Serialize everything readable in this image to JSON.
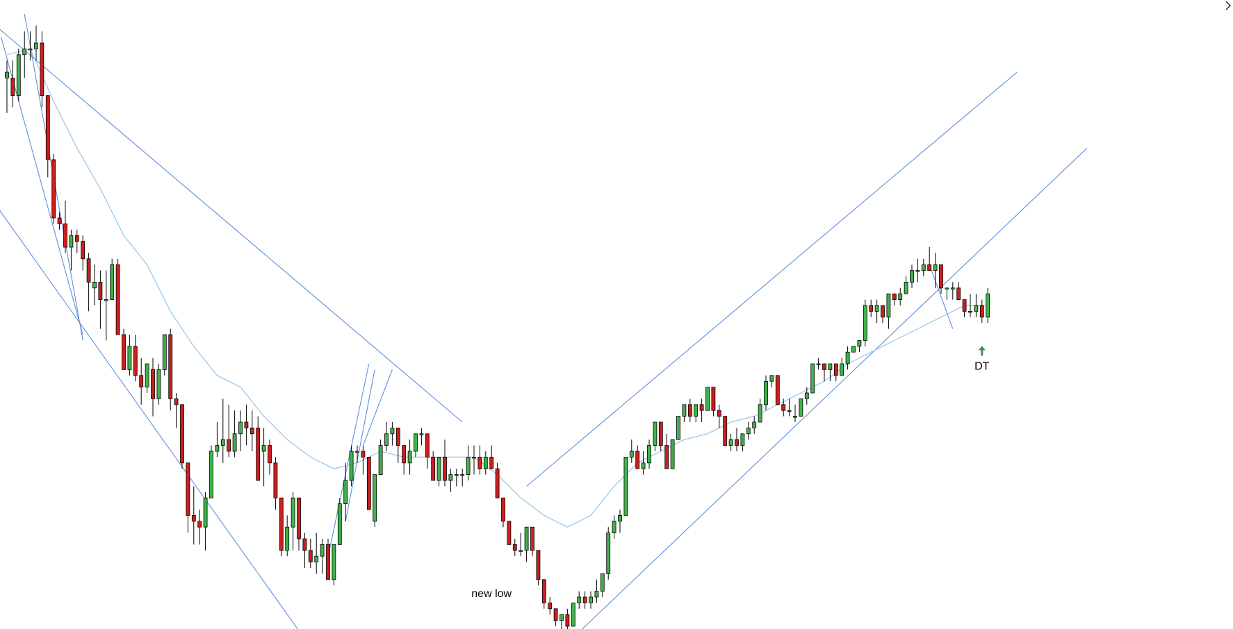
{
  "chart_data": {
    "type": "candlestick",
    "title": "",
    "xlabel": "",
    "ylabel": "",
    "ylim": [
      0,
      100
    ],
    "grid": false,
    "legend": "none",
    "colors": {
      "bull": "#3fb24a",
      "bear": "#cc1f1f",
      "trendline": "#5b8fdc",
      "ema": "#8fc6ee",
      "arrow": "#3e8e4e"
    },
    "bars": [
      {
        "o": 89,
        "h": 92,
        "l": 83,
        "c": 90
      },
      {
        "o": 89,
        "h": 92,
        "l": 84,
        "c": 86
      },
      {
        "o": 86,
        "h": 94,
        "l": 85,
        "c": 93
      },
      {
        "o": 93,
        "h": 97,
        "l": 89,
        "c": 94
      },
      {
        "o": 94,
        "h": 97,
        "l": 92,
        "c": 94
      },
      {
        "o": 94,
        "h": 98,
        "l": 92,
        "c": 95
      },
      {
        "o": 95,
        "h": 97,
        "l": 84,
        "c": 86
      },
      {
        "o": 86,
        "h": 86,
        "l": 72,
        "c": 75
      },
      {
        "o": 75,
        "h": 76,
        "l": 64,
        "c": 65
      },
      {
        "o": 65,
        "h": 66,
        "l": 63,
        "c": 64
      },
      {
        "o": 64,
        "h": 68,
        "l": 59,
        "c": 60
      },
      {
        "o": 60,
        "h": 63,
        "l": 56,
        "c": 62
      },
      {
        "o": 62,
        "h": 63,
        "l": 59,
        "c": 61
      },
      {
        "o": 61,
        "h": 62,
        "l": 56,
        "c": 58
      },
      {
        "o": 58,
        "h": 59,
        "l": 49,
        "c": 54
      },
      {
        "o": 53,
        "h": 57,
        "l": 50,
        "c": 54
      },
      {
        "o": 54,
        "h": 56,
        "l": 46,
        "c": 51
      },
      {
        "o": 51,
        "h": 56,
        "l": 44,
        "c": 51
      },
      {
        "o": 51,
        "h": 58,
        "l": 51,
        "c": 57
      },
      {
        "o": 57,
        "h": 58,
        "l": 45,
        "c": 45
      },
      {
        "o": 45,
        "h": 46,
        "l": 39,
        "c": 39
      },
      {
        "o": 39,
        "h": 45,
        "l": 38,
        "c": 43
      },
      {
        "o": 43,
        "h": 45,
        "l": 37,
        "c": 38
      },
      {
        "o": 38,
        "h": 41,
        "l": 33,
        "c": 36
      },
      {
        "o": 36,
        "h": 40,
        "l": 35,
        "c": 40
      },
      {
        "o": 39,
        "h": 41,
        "l": 31,
        "c": 34
      },
      {
        "o": 34,
        "h": 40,
        "l": 33,
        "c": 39
      },
      {
        "o": 39,
        "h": 45,
        "l": 38,
        "c": 45
      },
      {
        "o": 45,
        "h": 46,
        "l": 32,
        "c": 34
      },
      {
        "o": 34,
        "h": 35,
        "l": 29,
        "c": 33
      },
      {
        "o": 33,
        "h": 33,
        "l": 22,
        "c": 23
      },
      {
        "o": 23,
        "h": 23,
        "l": 11,
        "c": 14
      },
      {
        "o": 14,
        "h": 19,
        "l": 9,
        "c": 13
      },
      {
        "o": 13,
        "h": 15,
        "l": 9,
        "c": 12
      },
      {
        "o": 12,
        "h": 18,
        "l": 8,
        "c": 17
      },
      {
        "o": 17,
        "h": 26,
        "l": 17,
        "c": 25
      },
      {
        "o": 25,
        "h": 30,
        "l": 24,
        "c": 26
      },
      {
        "o": 26,
        "h": 34,
        "l": 23,
        "c": 27
      },
      {
        "o": 27,
        "h": 33,
        "l": 24,
        "c": 25
      },
      {
        "o": 25,
        "h": 32,
        "l": 24,
        "c": 28
      },
      {
        "o": 28,
        "h": 32,
        "l": 25,
        "c": 30
      },
      {
        "o": 30,
        "h": 33,
        "l": 26,
        "c": 29
      },
      {
        "o": 29,
        "h": 32,
        "l": 25,
        "c": 28
      },
      {
        "o": 29,
        "h": 31,
        "l": 20,
        "c": 20
      },
      {
        "o": 25,
        "h": 29,
        "l": 19,
        "c": 26
      },
      {
        "o": 26,
        "h": 27,
        "l": 21,
        "c": 23
      },
      {
        "o": 23,
        "h": 24,
        "l": 15,
        "c": 17
      },
      {
        "o": 17,
        "h": 17,
        "l": 7,
        "c": 8
      },
      {
        "o": 8,
        "h": 14,
        "l": 7,
        "c": 12
      },
      {
        "o": 12,
        "h": 18,
        "l": 8,
        "c": 17
      },
      {
        "o": 17,
        "h": 17,
        "l": 8,
        "c": 10
      },
      {
        "o": 10,
        "h": 11,
        "l": 5,
        "c": 8
      },
      {
        "o": 8,
        "h": 10,
        "l": 5,
        "c": 6
      },
      {
        "o": 6,
        "h": 11,
        "l": 4,
        "c": 7
      },
      {
        "o": 7,
        "h": 10,
        "l": 4,
        "c": 9
      },
      {
        "o": 9,
        "h": 10,
        "l": 3,
        "c": 3
      },
      {
        "o": 3,
        "h": 9,
        "l": 2,
        "c": 9
      },
      {
        "o": 9,
        "h": 17,
        "l": 9,
        "c": 16
      },
      {
        "o": 16,
        "h": 23,
        "l": 13,
        "c": 20
      },
      {
        "o": 20,
        "h": 26,
        "l": 19,
        "c": 25
      },
      {
        "o": 25,
        "h": 26,
        "l": 23,
        "c": 25
      },
      {
        "o": 25,
        "h": 26,
        "l": 21,
        "c": 24
      },
      {
        "o": 24,
        "h": 24,
        "l": 15,
        "c": 15
      },
      {
        "o": 13,
        "h": 21,
        "l": 12,
        "c": 21
      },
      {
        "o": 21,
        "h": 27,
        "l": 21,
        "c": 26
      },
      {
        "o": 26,
        "h": 30,
        "l": 25,
        "c": 28
      },
      {
        "o": 28,
        "h": 30,
        "l": 26,
        "c": 29
      },
      {
        "o": 29,
        "h": 29,
        "l": 23,
        "c": 26
      },
      {
        "o": 26,
        "h": 26,
        "l": 21,
        "c": 23
      },
      {
        "o": 23,
        "h": 27,
        "l": 21,
        "c": 25
      },
      {
        "o": 25,
        "h": 28,
        "l": 24,
        "c": 28
      },
      {
        "o": 28,
        "h": 29,
        "l": 26,
        "c": 28
      },
      {
        "o": 28,
        "h": 28,
        "l": 22,
        "c": 24
      },
      {
        "o": 24,
        "h": 25,
        "l": 20,
        "c": 20
      },
      {
        "o": 20,
        "h": 24,
        "l": 19,
        "c": 24
      },
      {
        "o": 24,
        "h": 27,
        "l": 19,
        "c": 20
      },
      {
        "o": 20,
        "h": 22,
        "l": 18,
        "c": 21
      },
      {
        "o": 21,
        "h": 22,
        "l": 19,
        "c": 21
      },
      {
        "o": 21,
        "h": 22,
        "l": 19,
        "c": 21
      },
      {
        "o": 21,
        "h": 26,
        "l": 20,
        "c": 24
      },
      {
        "o": 24,
        "h": 26,
        "l": 21,
        "c": 24
      },
      {
        "o": 24,
        "h": 26,
        "l": 21,
        "c": 22
      },
      {
        "o": 22,
        "h": 25,
        "l": 21,
        "c": 24
      },
      {
        "o": 24,
        "h": 26,
        "l": 22,
        "c": 22
      },
      {
        "o": 22,
        "h": 23,
        "l": 17,
        "c": 17
      },
      {
        "o": 17,
        "h": 17,
        "l": 12,
        "c": 13
      },
      {
        "o": 13,
        "h": 13,
        "l": 9,
        "c": 9
      },
      {
        "o": 9,
        "h": 10,
        "l": 7,
        "c": 8
      },
      {
        "o": 8,
        "h": 11,
        "l": 7,
        "c": 8
      },
      {
        "o": 8,
        "h": 12,
        "l": 6,
        "c": 12
      },
      {
        "o": 12,
        "h": 12,
        "l": 7,
        "c": 8
      },
      {
        "o": 8,
        "h": 8,
        "l": 2,
        "c": 3
      },
      {
        "o": 3,
        "h": 3,
        "l": -2,
        "c": -1
      },
      {
        "o": -1,
        "h": 0,
        "l": -3,
        "c": -2
      },
      {
        "o": -2,
        "h": -2,
        "l": -5,
        "c": -4
      },
      {
        "o": -4,
        "h": -3,
        "l": -6,
        "c": -3
      },
      {
        "o": -3,
        "h": -2,
        "l": -6,
        "c": -5
      },
      {
        "o": -5,
        "h": -1,
        "l": -5,
        "c": -1
      },
      {
        "o": -1,
        "h": 1,
        "l": -2,
        "c": 0
      },
      {
        "o": 0,
        "h": 1,
        "l": -2,
        "c": -1
      },
      {
        "o": -1,
        "h": 1,
        "l": -2,
        "c": 0
      },
      {
        "o": 0,
        "h": 3,
        "l": -1,
        "c": 1
      },
      {
        "o": 1,
        "h": 4,
        "l": 0,
        "c": 4
      },
      {
        "o": 4,
        "h": 12,
        "l": 3,
        "c": 11
      },
      {
        "o": 11,
        "h": 14,
        "l": 10,
        "c": 13
      },
      {
        "o": 13,
        "h": 15,
        "l": 11,
        "c": 14
      },
      {
        "o": 14,
        "h": 24,
        "l": 14,
        "c": 24
      },
      {
        "o": 24,
        "h": 27,
        "l": 23,
        "c": 25
      },
      {
        "o": 25,
        "h": 26,
        "l": 22,
        "c": 22
      },
      {
        "o": 22,
        "h": 25,
        "l": 21,
        "c": 23
      },
      {
        "o": 23,
        "h": 27,
        "l": 22,
        "c": 26
      },
      {
        "o": 26,
        "h": 30,
        "l": 25,
        "c": 30
      },
      {
        "o": 30,
        "h": 30,
        "l": 25,
        "c": 26
      },
      {
        "o": 26,
        "h": 28,
        "l": 22,
        "c": 22
      },
      {
        "o": 22,
        "h": 27,
        "l": 22,
        "c": 27
      },
      {
        "o": 27,
        "h": 31,
        "l": 27,
        "c": 31
      },
      {
        "o": 31,
        "h": 33,
        "l": 30,
        "c": 33
      },
      {
        "o": 33,
        "h": 34,
        "l": 30,
        "c": 31
      },
      {
        "o": 31,
        "h": 33,
        "l": 30,
        "c": 33
      },
      {
        "o": 33,
        "h": 34,
        "l": 30,
        "c": 32
      },
      {
        "o": 32,
        "h": 36,
        "l": 32,
        "c": 36
      },
      {
        "o": 36,
        "h": 36,
        "l": 31,
        "c": 32
      },
      {
        "o": 32,
        "h": 33,
        "l": 29,
        "c": 31
      },
      {
        "o": 31,
        "h": 31,
        "l": 26,
        "c": 26
      },
      {
        "o": 26,
        "h": 28,
        "l": 25,
        "c": 27
      },
      {
        "o": 27,
        "h": 29,
        "l": 25,
        "c": 26
      },
      {
        "o": 26,
        "h": 28,
        "l": 25,
        "c": 28
      },
      {
        "o": 28,
        "h": 30,
        "l": 27,
        "c": 29
      },
      {
        "o": 29,
        "h": 31,
        "l": 28,
        "c": 30
      },
      {
        "o": 30,
        "h": 34,
        "l": 30,
        "c": 33
      },
      {
        "o": 33,
        "h": 38,
        "l": 32,
        "c": 37
      },
      {
        "o": 37,
        "h": 38,
        "l": 36,
        "c": 38
      },
      {
        "o": 38,
        "h": 38,
        "l": 33,
        "c": 33
      },
      {
        "o": 33,
        "h": 34,
        "l": 31,
        "c": 32
      },
      {
        "o": 32,
        "h": 34,
        "l": 31,
        "c": 32
      },
      {
        "o": 31,
        "h": 33,
        "l": 30,
        "c": 31
      },
      {
        "o": 31,
        "h": 34,
        "l": 31,
        "c": 34
      },
      {
        "o": 34,
        "h": 36,
        "l": 33,
        "c": 35
      },
      {
        "o": 35,
        "h": 40,
        "l": 35,
        "c": 40
      },
      {
        "o": 40,
        "h": 41,
        "l": 39,
        "c": 40
      },
      {
        "o": 40,
        "h": 40,
        "l": 37,
        "c": 39
      },
      {
        "o": 39,
        "h": 40,
        "l": 37,
        "c": 40
      },
      {
        "o": 40,
        "h": 40,
        "l": 37,
        "c": 38
      },
      {
        "o": 38,
        "h": 41,
        "l": 38,
        "c": 40
      },
      {
        "o": 40,
        "h": 43,
        "l": 39,
        "c": 42
      },
      {
        "o": 42,
        "h": 43,
        "l": 42,
        "c": 43
      },
      {
        "o": 43,
        "h": 44,
        "l": 42,
        "c": 44
      },
      {
        "o": 44,
        "h": 51,
        "l": 43,
        "c": 50
      },
      {
        "o": 50,
        "h": 51,
        "l": 48,
        "c": 49
      },
      {
        "o": 49,
        "h": 51,
        "l": 47,
        "c": 50
      },
      {
        "o": 50,
        "h": 50,
        "l": 47,
        "c": 48
      },
      {
        "o": 48,
        "h": 52,
        "l": 46,
        "c": 52
      },
      {
        "o": 52,
        "h": 52,
        "l": 50,
        "c": 51
      },
      {
        "o": 51,
        "h": 53,
        "l": 50,
        "c": 52
      },
      {
        "o": 52,
        "h": 55,
        "l": 52,
        "c": 54
      },
      {
        "o": 54,
        "h": 57,
        "l": 53,
        "c": 56
      },
      {
        "o": 56,
        "h": 58,
        "l": 54,
        "c": 56
      },
      {
        "o": 56,
        "h": 58,
        "l": 55,
        "c": 57
      },
      {
        "o": 57,
        "h": 60,
        "l": 56,
        "c": 56
      },
      {
        "o": 56,
        "h": 59,
        "l": 53,
        "c": 57
      },
      {
        "o": 57,
        "h": 57,
        "l": 52,
        "c": 53
      },
      {
        "o": 53,
        "h": 53,
        "l": 51,
        "c": 53
      },
      {
        "o": 53,
        "h": 54,
        "l": 51,
        "c": 53
      },
      {
        "o": 53,
        "h": 54,
        "l": 51,
        "c": 51
      },
      {
        "o": 51,
        "h": 51,
        "l": 48,
        "c": 49
      },
      {
        "o": 49,
        "h": 52,
        "l": 48,
        "c": 49
      },
      {
        "o": 49,
        "h": 52,
        "l": 48,
        "c": 50
      },
      {
        "o": 50,
        "h": 51,
        "l": 47,
        "c": 48
      },
      {
        "o": 48,
        "h": 53,
        "l": 47,
        "c": 52
      }
    ],
    "ema": [
      [
        0,
        93
      ],
      [
        4,
        94
      ],
      [
        8,
        85
      ],
      [
        12,
        77
      ],
      [
        16,
        70
      ],
      [
        20,
        62
      ],
      [
        24,
        57
      ],
      [
        28,
        49
      ],
      [
        32,
        43
      ],
      [
        36,
        38
      ],
      [
        40,
        36
      ],
      [
        44,
        31
      ],
      [
        48,
        27
      ],
      [
        52,
        24
      ],
      [
        56,
        22
      ],
      [
        60,
        23
      ],
      [
        64,
        25
      ],
      [
        68,
        24
      ],
      [
        72,
        24
      ],
      [
        76,
        24
      ],
      [
        80,
        24
      ],
      [
        84,
        21
      ],
      [
        88,
        17
      ],
      [
        92,
        14
      ],
      [
        96,
        12
      ],
      [
        100,
        14
      ],
      [
        104,
        19
      ],
      [
        108,
        23
      ],
      [
        112,
        25
      ],
      [
        116,
        27
      ],
      [
        120,
        28
      ],
      [
        124,
        30
      ],
      [
        128,
        31
      ],
      [
        132,
        33
      ],
      [
        136,
        35
      ],
      [
        140,
        37
      ],
      [
        144,
        40
      ],
      [
        148,
        42
      ],
      [
        152,
        44
      ],
      [
        156,
        46
      ],
      [
        160,
        48
      ],
      [
        164,
        50
      ],
      [
        168,
        50
      ]
    ],
    "trendlines": [
      {
        "x1": -2,
        "y1": 98,
        "x2": 78,
        "y2": 30
      },
      {
        "x1": -6,
        "y1": 73,
        "x2": 53,
        "y2": -10
      },
      {
        "x1": -1,
        "y1": 96,
        "x2": 13,
        "y2": 45
      },
      {
        "x1": 3,
        "y1": 100,
        "x2": 13,
        "y2": 44
      },
      {
        "x1": 55,
        "y1": 7,
        "x2": 62,
        "y2": 40
      },
      {
        "x1": 58,
        "y1": 13,
        "x2": 63,
        "y2": 39
      },
      {
        "x1": 61,
        "y1": 26,
        "x2": 66,
        "y2": 39
      },
      {
        "x1": 89,
        "y1": 19,
        "x2": 173,
        "y2": 90
      },
      {
        "x1": 98,
        "y1": -6,
        "x2": 185,
        "y2": 77
      },
      {
        "x1": 158,
        "y1": 57,
        "x2": 162,
        "y2": 46
      }
    ],
    "annotations": [
      {
        "text": "new low",
        "x": 83,
        "y": 0
      },
      {
        "text": "DT",
        "x": 167,
        "y": 39
      }
    ]
  }
}
